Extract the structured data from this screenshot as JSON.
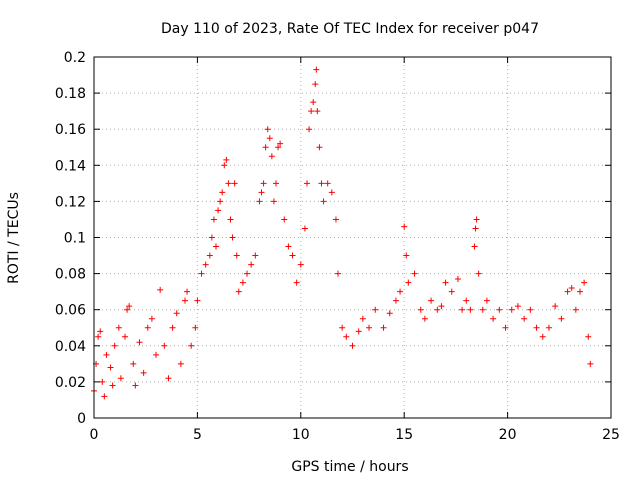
{
  "chart_data": {
    "type": "scatter",
    "title": "Day 110 of 2023, Rate Of TEC Index for receiver p047",
    "xlabel": "GPS time / hours",
    "ylabel": "ROTI / TECUs",
    "xlim": [
      0,
      25
    ],
    "ylim": [
      0,
      0.2
    ],
    "xticks": [
      0,
      5,
      10,
      15,
      20,
      25
    ],
    "yticks": [
      0,
      0.02,
      0.04,
      0.06,
      0.08,
      0.1,
      0.12,
      0.14,
      0.16,
      0.18,
      0.2
    ],
    "x_tick_labels": [
      "0",
      "5",
      "10",
      "15",
      "20",
      "25"
    ],
    "y_tick_labels": [
      "0",
      "0.02",
      "0.04",
      "0.06",
      "0.08",
      "0.1",
      "0.12",
      "0.14",
      "0.16",
      "0.18",
      "0.2"
    ],
    "grid": true,
    "marker": "+",
    "color": "#ff0000",
    "series": [
      {
        "points": [
          [
            0.0,
            0.015
          ],
          [
            0.1,
            0.03
          ],
          [
            0.2,
            0.045
          ],
          [
            0.3,
            0.048
          ],
          [
            0.4,
            0.02
          ],
          [
            0.5,
            0.012
          ],
          [
            0.6,
            0.035
          ],
          [
            0.8,
            0.028
          ],
          [
            0.9,
            0.018
          ],
          [
            1.0,
            0.04
          ],
          [
            1.2,
            0.05
          ],
          [
            1.3,
            0.022
          ],
          [
            1.5,
            0.045
          ],
          [
            1.6,
            0.06
          ],
          [
            1.7,
            0.062
          ],
          [
            1.9,
            0.03
          ],
          [
            2.0,
            0.018
          ],
          [
            2.2,
            0.042
          ],
          [
            2.4,
            0.025
          ],
          [
            2.6,
            0.05
          ],
          [
            2.8,
            0.055
          ],
          [
            3.0,
            0.035
          ],
          [
            3.2,
            0.071
          ],
          [
            3.4,
            0.04
          ],
          [
            3.6,
            0.022
          ],
          [
            3.8,
            0.05
          ],
          [
            4.0,
            0.058
          ],
          [
            4.2,
            0.03
          ],
          [
            4.4,
            0.065
          ],
          [
            4.5,
            0.07
          ],
          [
            4.7,
            0.04
          ],
          [
            4.9,
            0.05
          ],
          [
            5.0,
            0.065
          ],
          [
            5.2,
            0.08
          ],
          [
            5.4,
            0.085
          ],
          [
            5.6,
            0.09
          ],
          [
            5.7,
            0.1
          ],
          [
            5.8,
            0.11
          ],
          [
            5.9,
            0.095
          ],
          [
            6.0,
            0.115
          ],
          [
            6.1,
            0.12
          ],
          [
            6.2,
            0.125
          ],
          [
            6.3,
            0.14
          ],
          [
            6.4,
            0.143
          ],
          [
            6.5,
            0.13
          ],
          [
            6.6,
            0.11
          ],
          [
            6.7,
            0.1
          ],
          [
            6.8,
            0.13
          ],
          [
            6.9,
            0.09
          ],
          [
            7.0,
            0.07
          ],
          [
            7.2,
            0.075
          ],
          [
            7.4,
            0.08
          ],
          [
            7.6,
            0.085
          ],
          [
            7.8,
            0.09
          ],
          [
            8.0,
            0.12
          ],
          [
            8.1,
            0.125
          ],
          [
            8.2,
            0.13
          ],
          [
            8.3,
            0.15
          ],
          [
            8.4,
            0.16
          ],
          [
            8.5,
            0.155
          ],
          [
            8.6,
            0.145
          ],
          [
            8.7,
            0.12
          ],
          [
            8.8,
            0.13
          ],
          [
            8.9,
            0.15
          ],
          [
            9.0,
            0.152
          ],
          [
            9.2,
            0.11
          ],
          [
            9.4,
            0.095
          ],
          [
            9.6,
            0.09
          ],
          [
            9.8,
            0.075
          ],
          [
            10.0,
            0.085
          ],
          [
            10.2,
            0.105
          ],
          [
            10.3,
            0.13
          ],
          [
            10.4,
            0.16
          ],
          [
            10.5,
            0.17
          ],
          [
            10.6,
            0.175
          ],
          [
            10.7,
            0.185
          ],
          [
            10.75,
            0.193
          ],
          [
            10.8,
            0.17
          ],
          [
            10.9,
            0.15
          ],
          [
            11.0,
            0.13
          ],
          [
            11.1,
            0.12
          ],
          [
            11.3,
            0.13
          ],
          [
            11.5,
            0.125
          ],
          [
            11.7,
            0.11
          ],
          [
            11.8,
            0.08
          ],
          [
            12.0,
            0.05
          ],
          [
            12.2,
            0.045
          ],
          [
            12.5,
            0.04
          ],
          [
            12.8,
            0.048
          ],
          [
            13.0,
            0.055
          ],
          [
            13.3,
            0.05
          ],
          [
            13.6,
            0.06
          ],
          [
            14.0,
            0.05
          ],
          [
            14.3,
            0.058
          ],
          [
            14.6,
            0.065
          ],
          [
            14.8,
            0.07
          ],
          [
            15.0,
            0.106
          ],
          [
            15.1,
            0.09
          ],
          [
            15.2,
            0.075
          ],
          [
            15.5,
            0.08
          ],
          [
            15.8,
            0.06
          ],
          [
            16.0,
            0.055
          ],
          [
            16.3,
            0.065
          ],
          [
            16.6,
            0.06
          ],
          [
            16.8,
            0.062
          ],
          [
            17.0,
            0.075
          ],
          [
            17.3,
            0.07
          ],
          [
            17.6,
            0.077
          ],
          [
            17.8,
            0.06
          ],
          [
            18.0,
            0.065
          ],
          [
            18.2,
            0.06
          ],
          [
            18.4,
            0.095
          ],
          [
            18.45,
            0.105
          ],
          [
            18.5,
            0.11
          ],
          [
            18.6,
            0.08
          ],
          [
            18.8,
            0.06
          ],
          [
            19.0,
            0.065
          ],
          [
            19.3,
            0.055
          ],
          [
            19.6,
            0.06
          ],
          [
            19.9,
            0.05
          ],
          [
            20.2,
            0.06
          ],
          [
            20.5,
            0.062
          ],
          [
            20.8,
            0.055
          ],
          [
            21.1,
            0.06
          ],
          [
            21.4,
            0.05
          ],
          [
            21.7,
            0.045
          ],
          [
            22.0,
            0.05
          ],
          [
            22.3,
            0.062
          ],
          [
            22.6,
            0.055
          ],
          [
            22.9,
            0.07
          ],
          [
            23.1,
            0.072
          ],
          [
            23.3,
            0.06
          ],
          [
            23.5,
            0.07
          ],
          [
            23.7,
            0.075
          ],
          [
            23.9,
            0.045
          ],
          [
            24.0,
            0.03
          ]
        ]
      }
    ]
  }
}
